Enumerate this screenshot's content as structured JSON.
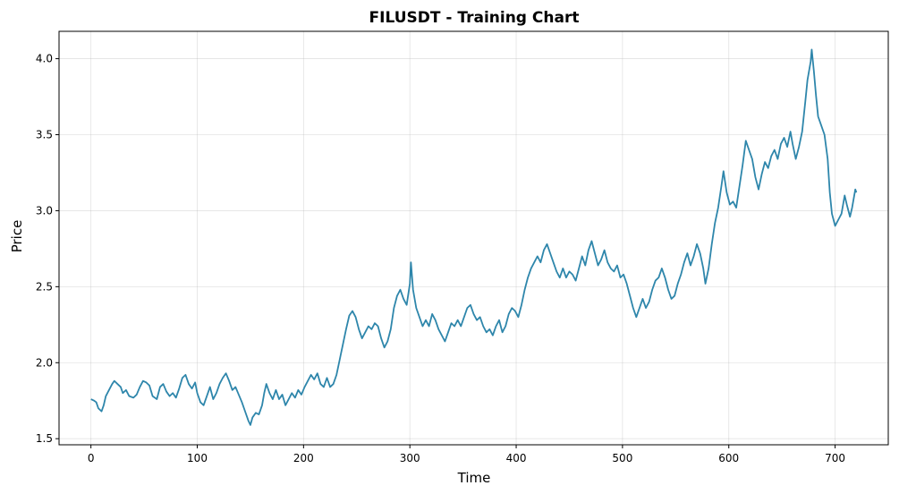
{
  "chart_data": {
    "type": "line",
    "title": "FILUSDT - Training Chart",
    "xlabel": "Time",
    "ylabel": "Price",
    "xlim": [
      -30,
      750
    ],
    "ylim": [
      1.46,
      4.18
    ],
    "xticks": [
      0,
      100,
      200,
      300,
      400,
      500,
      600,
      700
    ],
    "yticks": [
      1.5,
      2.0,
      2.5,
      3.0,
      3.5,
      4.0
    ],
    "xtick_labels": [
      "0",
      "100",
      "200",
      "300",
      "400",
      "500",
      "600",
      "700"
    ],
    "ytick_labels": [
      "1.5",
      "2.0",
      "2.5",
      "3.0",
      "3.5",
      "4.0"
    ],
    "grid": true,
    "line_color": "#2e86ab",
    "series": [
      {
        "points": [
          [
            0,
            1.76
          ],
          [
            3,
            1.75
          ],
          [
            5,
            1.74
          ],
          [
            7,
            1.7
          ],
          [
            10,
            1.68
          ],
          [
            12,
            1.72
          ],
          [
            14,
            1.78
          ],
          [
            17,
            1.82
          ],
          [
            20,
            1.86
          ],
          [
            22,
            1.88
          ],
          [
            25,
            1.86
          ],
          [
            28,
            1.84
          ],
          [
            30,
            1.8
          ],
          [
            33,
            1.82
          ],
          [
            36,
            1.78
          ],
          [
            40,
            1.77
          ],
          [
            43,
            1.79
          ],
          [
            46,
            1.84
          ],
          [
            49,
            1.88
          ],
          [
            52,
            1.87
          ],
          [
            55,
            1.85
          ],
          [
            58,
            1.78
          ],
          [
            62,
            1.76
          ],
          [
            65,
            1.84
          ],
          [
            68,
            1.86
          ],
          [
            71,
            1.81
          ],
          [
            74,
            1.78
          ],
          [
            77,
            1.8
          ],
          [
            80,
            1.77
          ],
          [
            83,
            1.83
          ],
          [
            86,
            1.9
          ],
          [
            89,
            1.92
          ],
          [
            92,
            1.86
          ],
          [
            95,
            1.83
          ],
          [
            98,
            1.87
          ],
          [
            100,
            1.8
          ],
          [
            103,
            1.74
          ],
          [
            106,
            1.72
          ],
          [
            109,
            1.78
          ],
          [
            112,
            1.84
          ],
          [
            115,
            1.76
          ],
          [
            118,
            1.8
          ],
          [
            121,
            1.86
          ],
          [
            124,
            1.9
          ],
          [
            127,
            1.93
          ],
          [
            130,
            1.88
          ],
          [
            133,
            1.82
          ],
          [
            136,
            1.84
          ],
          [
            139,
            1.79
          ],
          [
            142,
            1.74
          ],
          [
            145,
            1.68
          ],
          [
            148,
            1.62
          ],
          [
            150,
            1.59
          ],
          [
            152,
            1.64
          ],
          [
            155,
            1.67
          ],
          [
            158,
            1.66
          ],
          [
            161,
            1.72
          ],
          [
            163,
            1.8
          ],
          [
            165,
            1.86
          ],
          [
            168,
            1.8
          ],
          [
            171,
            1.76
          ],
          [
            174,
            1.82
          ],
          [
            177,
            1.76
          ],
          [
            180,
            1.79
          ],
          [
            183,
            1.72
          ],
          [
            186,
            1.76
          ],
          [
            189,
            1.8
          ],
          [
            192,
            1.77
          ],
          [
            195,
            1.82
          ],
          [
            198,
            1.79
          ],
          [
            201,
            1.84
          ],
          [
            204,
            1.88
          ],
          [
            207,
            1.92
          ],
          [
            210,
            1.89
          ],
          [
            213,
            1.93
          ],
          [
            216,
            1.86
          ],
          [
            219,
            1.84
          ],
          [
            222,
            1.9
          ],
          [
            225,
            1.84
          ],
          [
            228,
            1.86
          ],
          [
            231,
            1.92
          ],
          [
            234,
            2.02
          ],
          [
            237,
            2.12
          ],
          [
            240,
            2.22
          ],
          [
            243,
            2.31
          ],
          [
            246,
            2.34
          ],
          [
            249,
            2.3
          ],
          [
            252,
            2.22
          ],
          [
            255,
            2.16
          ],
          [
            258,
            2.2
          ],
          [
            261,
            2.24
          ],
          [
            264,
            2.22
          ],
          [
            267,
            2.26
          ],
          [
            270,
            2.24
          ],
          [
            273,
            2.16
          ],
          [
            276,
            2.1
          ],
          [
            279,
            2.14
          ],
          [
            282,
            2.22
          ],
          [
            285,
            2.36
          ],
          [
            288,
            2.44
          ],
          [
            291,
            2.48
          ],
          [
            294,
            2.42
          ],
          [
            297,
            2.38
          ],
          [
            300,
            2.52
          ],
          [
            301,
            2.66
          ],
          [
            303,
            2.48
          ],
          [
            306,
            2.36
          ],
          [
            309,
            2.3
          ],
          [
            312,
            2.24
          ],
          [
            315,
            2.28
          ],
          [
            318,
            2.24
          ],
          [
            321,
            2.32
          ],
          [
            324,
            2.28
          ],
          [
            327,
            2.22
          ],
          [
            330,
            2.18
          ],
          [
            333,
            2.14
          ],
          [
            336,
            2.2
          ],
          [
            339,
            2.26
          ],
          [
            342,
            2.24
          ],
          [
            345,
            2.28
          ],
          [
            348,
            2.24
          ],
          [
            351,
            2.3
          ],
          [
            354,
            2.36
          ],
          [
            357,
            2.38
          ],
          [
            360,
            2.32
          ],
          [
            363,
            2.28
          ],
          [
            366,
            2.3
          ],
          [
            369,
            2.24
          ],
          [
            372,
            2.2
          ],
          [
            375,
            2.22
          ],
          [
            378,
            2.18
          ],
          [
            381,
            2.24
          ],
          [
            384,
            2.28
          ],
          [
            387,
            2.2
          ],
          [
            390,
            2.24
          ],
          [
            393,
            2.32
          ],
          [
            396,
            2.36
          ],
          [
            399,
            2.34
          ],
          [
            402,
            2.3
          ],
          [
            405,
            2.38
          ],
          [
            408,
            2.48
          ],
          [
            411,
            2.56
          ],
          [
            414,
            2.62
          ],
          [
            417,
            2.66
          ],
          [
            420,
            2.7
          ],
          [
            423,
            2.66
          ],
          [
            426,
            2.74
          ],
          [
            429,
            2.78
          ],
          [
            432,
            2.72
          ],
          [
            435,
            2.66
          ],
          [
            438,
            2.6
          ],
          [
            441,
            2.56
          ],
          [
            444,
            2.62
          ],
          [
            447,
            2.56
          ],
          [
            450,
            2.6
          ],
          [
            453,
            2.58
          ],
          [
            456,
            2.54
          ],
          [
            459,
            2.62
          ],
          [
            462,
            2.7
          ],
          [
            465,
            2.64
          ],
          [
            468,
            2.74
          ],
          [
            471,
            2.8
          ],
          [
            474,
            2.72
          ],
          [
            477,
            2.64
          ],
          [
            480,
            2.68
          ],
          [
            483,
            2.74
          ],
          [
            486,
            2.66
          ],
          [
            489,
            2.62
          ],
          [
            492,
            2.6
          ],
          [
            495,
            2.64
          ],
          [
            498,
            2.56
          ],
          [
            501,
            2.58
          ],
          [
            504,
            2.52
          ],
          [
            507,
            2.44
          ],
          [
            510,
            2.36
          ],
          [
            513,
            2.3
          ],
          [
            516,
            2.36
          ],
          [
            519,
            2.42
          ],
          [
            522,
            2.36
          ],
          [
            525,
            2.4
          ],
          [
            528,
            2.48
          ],
          [
            531,
            2.54
          ],
          [
            534,
            2.56
          ],
          [
            537,
            2.62
          ],
          [
            540,
            2.56
          ],
          [
            543,
            2.48
          ],
          [
            546,
            2.42
          ],
          [
            549,
            2.44
          ],
          [
            552,
            2.52
          ],
          [
            555,
            2.58
          ],
          [
            558,
            2.66
          ],
          [
            561,
            2.72
          ],
          [
            564,
            2.64
          ],
          [
            567,
            2.7
          ],
          [
            570,
            2.78
          ],
          [
            573,
            2.72
          ],
          [
            576,
            2.62
          ],
          [
            578,
            2.52
          ],
          [
            581,
            2.62
          ],
          [
            584,
            2.78
          ],
          [
            587,
            2.92
          ],
          [
            590,
            3.02
          ],
          [
            593,
            3.16
          ],
          [
            595,
            3.26
          ],
          [
            598,
            3.12
          ],
          [
            601,
            3.04
          ],
          [
            604,
            3.06
          ],
          [
            607,
            3.02
          ],
          [
            610,
            3.16
          ],
          [
            613,
            3.3
          ],
          [
            616,
            3.46
          ],
          [
            619,
            3.4
          ],
          [
            622,
            3.34
          ],
          [
            625,
            3.22
          ],
          [
            628,
            3.14
          ],
          [
            631,
            3.24
          ],
          [
            634,
            3.32
          ],
          [
            637,
            3.28
          ],
          [
            640,
            3.36
          ],
          [
            643,
            3.4
          ],
          [
            646,
            3.34
          ],
          [
            649,
            3.44
          ],
          [
            652,
            3.48
          ],
          [
            655,
            3.42
          ],
          [
            658,
            3.52
          ],
          [
            660,
            3.44
          ],
          [
            663,
            3.34
          ],
          [
            666,
            3.42
          ],
          [
            669,
            3.52
          ],
          [
            672,
            3.72
          ],
          [
            674,
            3.86
          ],
          [
            677,
            3.98
          ],
          [
            678,
            4.06
          ],
          [
            680,
            3.92
          ],
          [
            682,
            3.76
          ],
          [
            684,
            3.62
          ],
          [
            687,
            3.56
          ],
          [
            690,
            3.5
          ],
          [
            693,
            3.34
          ],
          [
            695,
            3.12
          ],
          [
            697,
            2.98
          ],
          [
            700,
            2.9
          ],
          [
            703,
            2.94
          ],
          [
            706,
            2.98
          ],
          [
            709,
            3.1
          ],
          [
            711,
            3.04
          ],
          [
            714,
            2.96
          ],
          [
            716,
            3.02
          ],
          [
            718,
            3.1
          ],
          [
            719,
            3.14
          ],
          [
            720,
            3.12
          ]
        ]
      }
    ]
  }
}
